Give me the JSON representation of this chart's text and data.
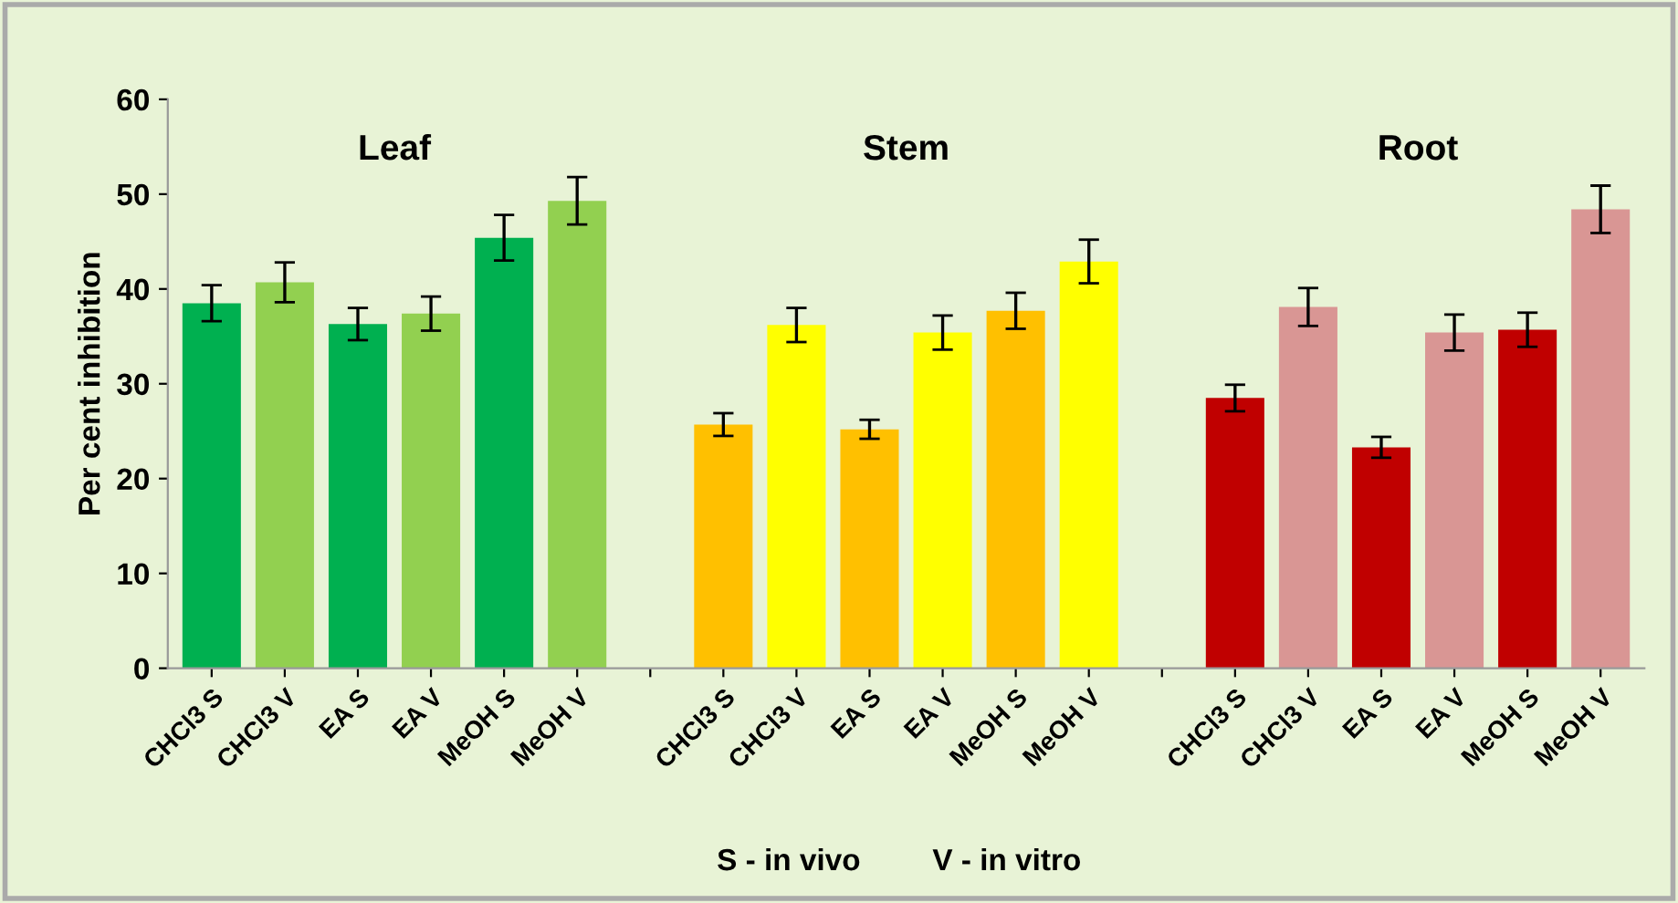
{
  "chart_data": {
    "type": "bar",
    "ylabel": "Per cent inhibition",
    "categories": [
      "CHCl3 S",
      "CHCl3 V",
      "EA S",
      "EA V",
      "MeOH S",
      "MeOH V",
      null,
      "CHCl3 S",
      "CHCl3 V",
      "EA S",
      "EA V",
      "MeOH S",
      "MeOH V",
      null,
      "CHCl3 S",
      "CHCl3 V",
      "EA S",
      "EA V",
      "MeOH S",
      "MeOH V"
    ],
    "values": [
      38.5,
      40.7,
      36.3,
      37.4,
      45.4,
      49.3,
      null,
      25.7,
      36.2,
      25.2,
      35.4,
      37.7,
      42.9,
      null,
      28.5,
      38.1,
      23.3,
      35.4,
      35.7,
      48.4
    ],
    "errors": [
      1.9,
      2.1,
      1.7,
      1.8,
      2.4,
      2.5,
      null,
      1.2,
      1.8,
      1.0,
      1.8,
      1.9,
      2.3,
      null,
      1.4,
      2.0,
      1.1,
      1.9,
      1.8,
      2.5
    ],
    "colors": [
      "#00b050",
      "#92d050",
      "#00b050",
      "#92d050",
      "#00b050",
      "#92d050",
      "#ffffff",
      "#ffc000",
      "#ffff00",
      "#ffc000",
      "#ffff00",
      "#ffc000",
      "#ffff00",
      "#ffffff",
      "#c00000",
      "#d99694",
      "#c00000",
      "#d99694",
      "#c00000",
      "#d99694"
    ],
    "ylim": [
      0,
      60
    ],
    "yticks": [
      0,
      10,
      20,
      30,
      40,
      50,
      60
    ],
    "grid": false,
    "legend": false,
    "annotations": [
      "Leaf",
      "Stem",
      "Root",
      "S - in vivo",
      "V - in vitro"
    ]
  }
}
